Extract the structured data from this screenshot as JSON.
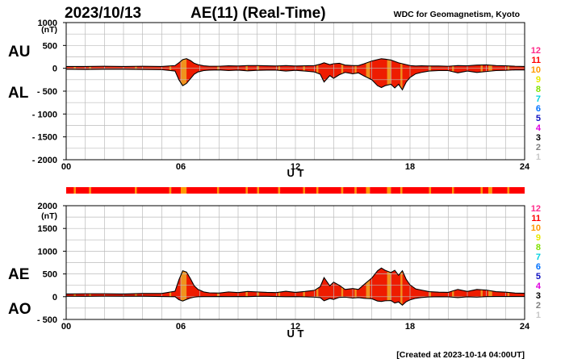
{
  "header": {
    "date": "2023/10/13",
    "title": "AE(11) (Real-Time)",
    "source": "WDC for Geomagnetism, Kyoto"
  },
  "footer": {
    "created": "[Created at 2023-10-14 04:00UT]"
  },
  "colors": {
    "fill_main": "#ee1c00",
    "fill_alt": "#ff3300",
    "fill_gap": "#f0a020",
    "grid": "#bbbbbb",
    "curve": "#000000"
  },
  "station_legend": [
    {
      "label": "12",
      "color": "#ff2a8a"
    },
    {
      "label": "11",
      "color": "#ff0000"
    },
    {
      "label": "10",
      "color": "#ff9900"
    },
    {
      "label": "9",
      "color": "#e8e800"
    },
    {
      "label": "8",
      "color": "#80e000"
    },
    {
      "label": "7",
      "color": "#00d0e0"
    },
    {
      "label": "6",
      "color": "#0070ff"
    },
    {
      "label": "5",
      "color": "#1010c0"
    },
    {
      "label": "4",
      "color": "#e000e0"
    },
    {
      "label": "3",
      "color": "#000000"
    },
    {
      "label": "2",
      "color": "#808080"
    },
    {
      "label": "1",
      "color": "#c8c8c8"
    }
  ],
  "coverage_bar": {
    "hours": [
      0,
      0.4,
      0.5,
      1.2,
      1.3,
      3.6,
      3.7,
      5.4,
      5.5,
      6.0,
      6.3,
      7.9,
      8.0,
      9.4,
      9.5,
      10.0,
      10.1,
      11.1,
      11.2,
      12.4,
      12.5,
      13.1,
      13.2,
      14.4,
      14.5,
      15.1,
      15.2,
      15.7,
      15.9,
      16.8,
      17.0,
      17.5,
      17.6,
      19.0,
      19.1,
      20.2,
      20.3,
      21.7,
      21.8,
      22.1,
      22.3,
      23.1,
      23.2,
      24
    ],
    "stations": [
      11,
      10,
      11,
      10,
      11,
      10,
      11,
      10,
      11,
      10,
      11,
      10,
      11,
      10,
      11,
      10,
      11,
      10,
      11,
      10,
      11,
      10,
      11,
      10,
      11,
      10,
      11,
      10,
      11,
      10,
      11,
      10,
      11,
      10,
      11,
      10,
      11,
      10,
      11,
      10,
      11,
      10,
      11,
      11
    ]
  },
  "chart_data": [
    {
      "type": "area",
      "name": "AU/AL",
      "title": "2023/10/13 AE(11) (Real-Time)",
      "upper_label": "AU",
      "lower_label": "AL",
      "unit_label": "(nT)",
      "xlabel": "U T",
      "x_ticks": [
        "00",
        "06",
        "12",
        "18",
        "24"
      ],
      "xlim": [
        0,
        24
      ],
      "y_ticks": [
        "1000",
        "500",
        "0",
        "- 500",
        "- 1000",
        "- 1500",
        "- 2000"
      ],
      "ylim": [
        -2000,
        1000
      ],
      "x": [
        0,
        1,
        2,
        3,
        4,
        5,
        5.7,
        5.9,
        6.1,
        6.3,
        6.5,
        6.7,
        6.9,
        7.2,
        7.5,
        8,
        8.5,
        9,
        9.5,
        10,
        10.5,
        11,
        11.5,
        12,
        12.5,
        13,
        13.3,
        13.5,
        13.8,
        14,
        14.3,
        14.6,
        15,
        15.3,
        15.6,
        16,
        16.3,
        16.5,
        16.7,
        17,
        17.2,
        17.4,
        17.6,
        17.8,
        18,
        18.3,
        18.6,
        19,
        19.5,
        20,
        20.5,
        21,
        21.5,
        22,
        22.5,
        23,
        23.5,
        24
      ],
      "series": [
        {
          "name": "AU",
          "values": [
            40,
            40,
            45,
            40,
            45,
            40,
            60,
            120,
            190,
            210,
            170,
            110,
            80,
            55,
            45,
            45,
            55,
            50,
            60,
            60,
            55,
            50,
            60,
            50,
            55,
            60,
            90,
            120,
            80,
            100,
            110,
            70,
            60,
            60,
            100,
            160,
            190,
            210,
            200,
            180,
            150,
            120,
            100,
            80,
            60,
            50,
            55,
            50,
            50,
            45,
            60,
            55,
            70,
            75,
            60,
            55,
            45,
            40
          ]
        },
        {
          "name": "AL",
          "values": [
            -20,
            -25,
            -20,
            -20,
            -25,
            -30,
            -60,
            -250,
            -380,
            -330,
            -230,
            -130,
            -80,
            -50,
            -40,
            -35,
            -50,
            -40,
            -55,
            -45,
            -40,
            -40,
            -60,
            -45,
            -60,
            -80,
            -130,
            -300,
            -160,
            -220,
            -140,
            -90,
            -120,
            -100,
            -170,
            -250,
            -380,
            -420,
            -380,
            -350,
            -430,
            -350,
            -470,
            -300,
            -200,
            -120,
            -90,
            -60,
            -50,
            -50,
            -100,
            -60,
            -90,
            -70,
            -50,
            -45,
            -35,
            -35
          ]
        }
      ]
    },
    {
      "type": "area",
      "name": "AE/AO",
      "upper_label": "AE",
      "lower_label": "AO",
      "unit_label": "(nT)",
      "xlabel": "U T",
      "x_ticks": [
        "00",
        "06",
        "12",
        "18",
        "24"
      ],
      "xlim": [
        0,
        24
      ],
      "y_ticks": [
        "2000",
        "1500",
        "1000",
        "500",
        "0",
        "- 500"
      ],
      "ylim": [
        -500,
        2000
      ],
      "x": [
        0,
        1,
        2,
        3,
        4,
        5,
        5.7,
        5.9,
        6.1,
        6.3,
        6.5,
        6.7,
        6.9,
        7.2,
        7.5,
        8,
        8.5,
        9,
        9.5,
        10,
        10.5,
        11,
        11.5,
        12,
        12.5,
        13,
        13.3,
        13.5,
        13.8,
        14,
        14.3,
        14.6,
        15,
        15.3,
        15.6,
        16,
        16.3,
        16.5,
        16.7,
        17,
        17.2,
        17.4,
        17.6,
        17.8,
        18,
        18.3,
        18.6,
        19,
        19.5,
        20,
        20.5,
        21,
        21.5,
        22,
        22.5,
        23,
        23.5,
        24
      ],
      "series": [
        {
          "name": "AE",
          "values": [
            60,
            65,
            65,
            60,
            70,
            70,
            120,
            370,
            570,
            540,
            400,
            240,
            160,
            105,
            85,
            80,
            105,
            90,
            115,
            105,
            95,
            90,
            120,
            95,
            115,
            140,
            220,
            420,
            240,
            320,
            250,
            160,
            180,
            160,
            270,
            410,
            570,
            630,
            580,
            530,
            580,
            470,
            570,
            380,
            260,
            170,
            145,
            110,
            100,
            95,
            160,
            115,
            160,
            145,
            110,
            100,
            80,
            75
          ]
        },
        {
          "name": "AO",
          "values": [
            10,
            8,
            12,
            10,
            10,
            5,
            0,
            -65,
            -95,
            -60,
            -30,
            -10,
            0,
            2,
            2,
            5,
            2,
            5,
            2,
            8,
            8,
            5,
            0,
            2,
            -2,
            -10,
            -20,
            -90,
            -40,
            -60,
            -15,
            -10,
            -30,
            -20,
            -35,
            -45,
            -95,
            -105,
            -90,
            -85,
            -140,
            -115,
            -185,
            -110,
            -70,
            -35,
            -18,
            -5,
            0,
            -2,
            -20,
            -2,
            -10,
            2,
            5,
            5,
            5,
            3
          ]
        }
      ]
    }
  ]
}
